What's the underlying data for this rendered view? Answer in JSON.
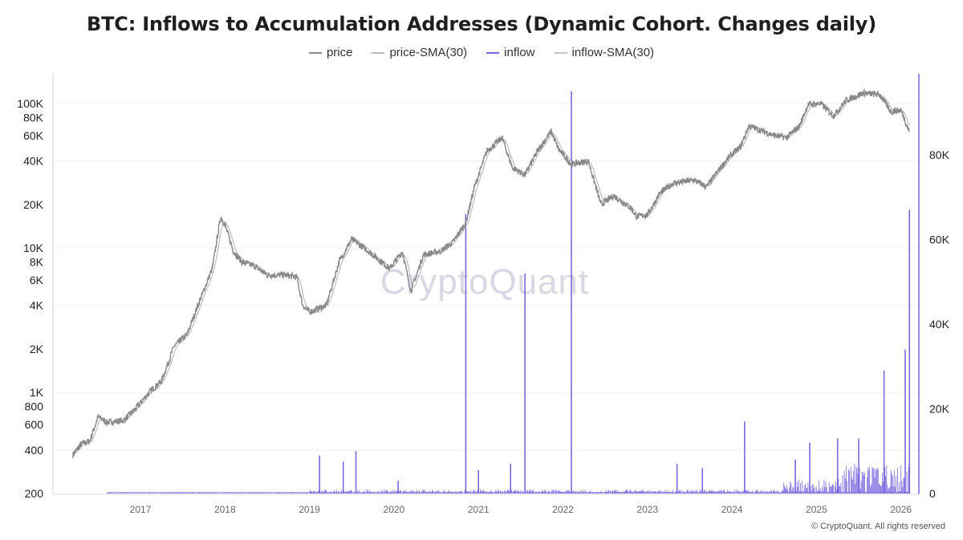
{
  "title": "BTC: Inflows to Accumulation Addresses (Dynamic Cohort. Changes daily)",
  "watermark": "CryptoQuant",
  "footer": "© CryptoQuant. All rights reserved",
  "colors": {
    "price": "#888888",
    "price_sma": "#bcbcbc",
    "inflow": "#7b68e0",
    "inflow_sma": "#c4c4c4",
    "grid": "#efefef",
    "axis": "#7b68e0"
  },
  "chart_data": {
    "type": "line",
    "title": "BTC: Inflows to Accumulation Addresses (Dynamic Cohort. Changes daily)",
    "legend": [
      "price",
      "price-SMA(30)",
      "inflow",
      "inflow-SMA(30)"
    ],
    "legend_position": "top",
    "grid": true,
    "x_ticks": [
      "2017",
      "2018",
      "2019",
      "2020",
      "2021",
      "2022",
      "2023",
      "2024",
      "2025",
      "2026"
    ],
    "y_left": {
      "scale": "log",
      "range": [
        200,
        120000
      ],
      "ticks": [
        200,
        400,
        600,
        800,
        1000,
        2000,
        4000,
        6000,
        8000,
        10000,
        20000,
        40000,
        60000,
        80000,
        100000
      ],
      "tick_labels": [
        "200",
        "400",
        "600",
        "800",
        "1K",
        "2K",
        "4K",
        "6K",
        "8K",
        "10K",
        "20K",
        "40K",
        "60K",
        "80K",
        "100K"
      ]
    },
    "y_right": {
      "scale": "linear",
      "range": [
        0,
        95000
      ],
      "ticks": [
        0,
        20000,
        40000,
        60000,
        80000
      ],
      "tick_labels": [
        "0",
        "20K",
        "40K",
        "60K",
        "80K"
      ]
    },
    "price_series": {
      "name": "price",
      "points": [
        [
          2016.2,
          370
        ],
        [
          2016.3,
          440
        ],
        [
          2016.4,
          460
        ],
        [
          2016.5,
          680
        ],
        [
          2016.6,
          620
        ],
        [
          2016.8,
          640
        ],
        [
          2016.95,
          780
        ],
        [
          2017.1,
          1000
        ],
        [
          2017.25,
          1200
        ],
        [
          2017.4,
          2100
        ],
        [
          2017.55,
          2500
        ],
        [
          2017.7,
          4300
        ],
        [
          2017.85,
          7200
        ],
        [
          2017.95,
          16500
        ],
        [
          2018.0,
          14500
        ],
        [
          2018.1,
          9500
        ],
        [
          2018.2,
          8000
        ],
        [
          2018.35,
          7500
        ],
        [
          2018.5,
          6500
        ],
        [
          2018.7,
          6500
        ],
        [
          2018.85,
          6300
        ],
        [
          2018.92,
          4000
        ],
        [
          2019.0,
          3600
        ],
        [
          2019.2,
          4000
        ],
        [
          2019.35,
          8000
        ],
        [
          2019.5,
          11500
        ],
        [
          2019.65,
          10000
        ],
        [
          2019.8,
          8500
        ],
        [
          2019.95,
          7200
        ],
        [
          2020.1,
          9500
        ],
        [
          2020.2,
          5000
        ],
        [
          2020.35,
          9000
        ],
        [
          2020.55,
          9500
        ],
        [
          2020.7,
          11000
        ],
        [
          2020.85,
          15000
        ],
        [
          2020.95,
          26000
        ],
        [
          2021.1,
          47000
        ],
        [
          2021.28,
          58000
        ],
        [
          2021.4,
          36000
        ],
        [
          2021.55,
          32000
        ],
        [
          2021.7,
          47000
        ],
        [
          2021.86,
          64000
        ],
        [
          2021.95,
          48000
        ],
        [
          2022.1,
          38000
        ],
        [
          2022.3,
          40000
        ],
        [
          2022.45,
          20000
        ],
        [
          2022.6,
          23000
        ],
        [
          2022.8,
          19000
        ],
        [
          2022.87,
          16500
        ],
        [
          2023.0,
          17000
        ],
        [
          2023.15,
          24000
        ],
        [
          2023.3,
          28000
        ],
        [
          2023.55,
          29500
        ],
        [
          2023.7,
          26500
        ],
        [
          2023.85,
          35000
        ],
        [
          2023.97,
          43000
        ],
        [
          2024.1,
          50000
        ],
        [
          2024.2,
          70000
        ],
        [
          2024.5,
          60000
        ],
        [
          2024.65,
          58000
        ],
        [
          2024.8,
          70000
        ],
        [
          2024.9,
          98000
        ],
        [
          2025.05,
          100000
        ],
        [
          2025.2,
          82000
        ],
        [
          2025.35,
          105000
        ],
        [
          2025.55,
          118000
        ],
        [
          2025.75,
          115000
        ],
        [
          2025.88,
          88000
        ],
        [
          2026.0,
          90000
        ],
        [
          2026.1,
          64000
        ]
      ]
    },
    "inflow_series": {
      "name": "inflow",
      "spikes": [
        [
          2019.12,
          9000
        ],
        [
          2019.4,
          7500
        ],
        [
          2019.55,
          10000
        ],
        [
          2020.05,
          3000
        ],
        [
          2020.85,
          66000
        ],
        [
          2021.0,
          5500
        ],
        [
          2021.38,
          7000
        ],
        [
          2021.55,
          52000
        ],
        [
          2022.1,
          95000
        ],
        [
          2023.35,
          7000
        ],
        [
          2023.65,
          6000
        ],
        [
          2024.15,
          17000
        ],
        [
          2024.75,
          8000
        ],
        [
          2024.92,
          12000
        ],
        [
          2025.25,
          13000
        ],
        [
          2025.5,
          13000
        ],
        [
          2025.8,
          29000
        ],
        [
          2026.05,
          34000
        ],
        [
          2026.1,
          67000
        ]
      ]
    }
  }
}
